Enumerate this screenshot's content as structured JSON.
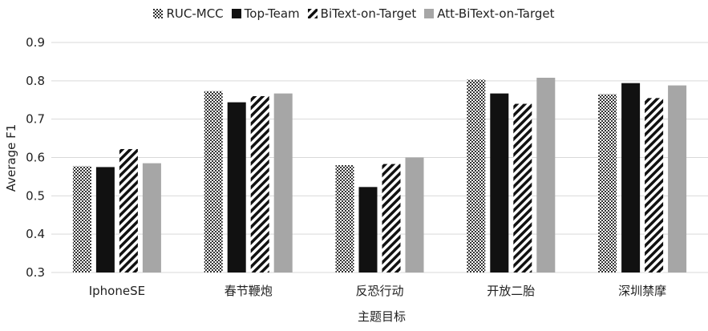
{
  "chart_data": {
    "type": "bar",
    "title": "",
    "xlabel": "主题目标",
    "ylabel": "Average F1",
    "ylim": [
      0.3,
      0.9
    ],
    "yticks": [
      "0.3",
      "0.4",
      "0.5",
      "0.6",
      "0.7",
      "0.8",
      "0.9"
    ],
    "grid": true,
    "legend_position": "top-center",
    "categories": [
      "IphoneSE",
      "春节鞭炮",
      "反恐行动",
      "开放二胎",
      "深圳禁摩"
    ],
    "series": [
      {
        "name": "RUC-MCC",
        "pattern": "checker",
        "color": "#555555",
        "values": [
          0.577,
          0.773,
          0.58,
          0.803,
          0.765
        ]
      },
      {
        "name": "Top-Team",
        "pattern": "solid",
        "color": "#111111",
        "values": [
          0.575,
          0.744,
          0.523,
          0.767,
          0.794
        ]
      },
      {
        "name": "BiText-on-Target",
        "pattern": "diagonal",
        "color": "#111111",
        "values": [
          0.622,
          0.76,
          0.583,
          0.74,
          0.755
        ]
      },
      {
        "name": "Att-BiText-on-Target",
        "pattern": "solid",
        "color": "#a6a6a6",
        "values": [
          0.585,
          0.767,
          0.6,
          0.808,
          0.788
        ]
      }
    ]
  }
}
